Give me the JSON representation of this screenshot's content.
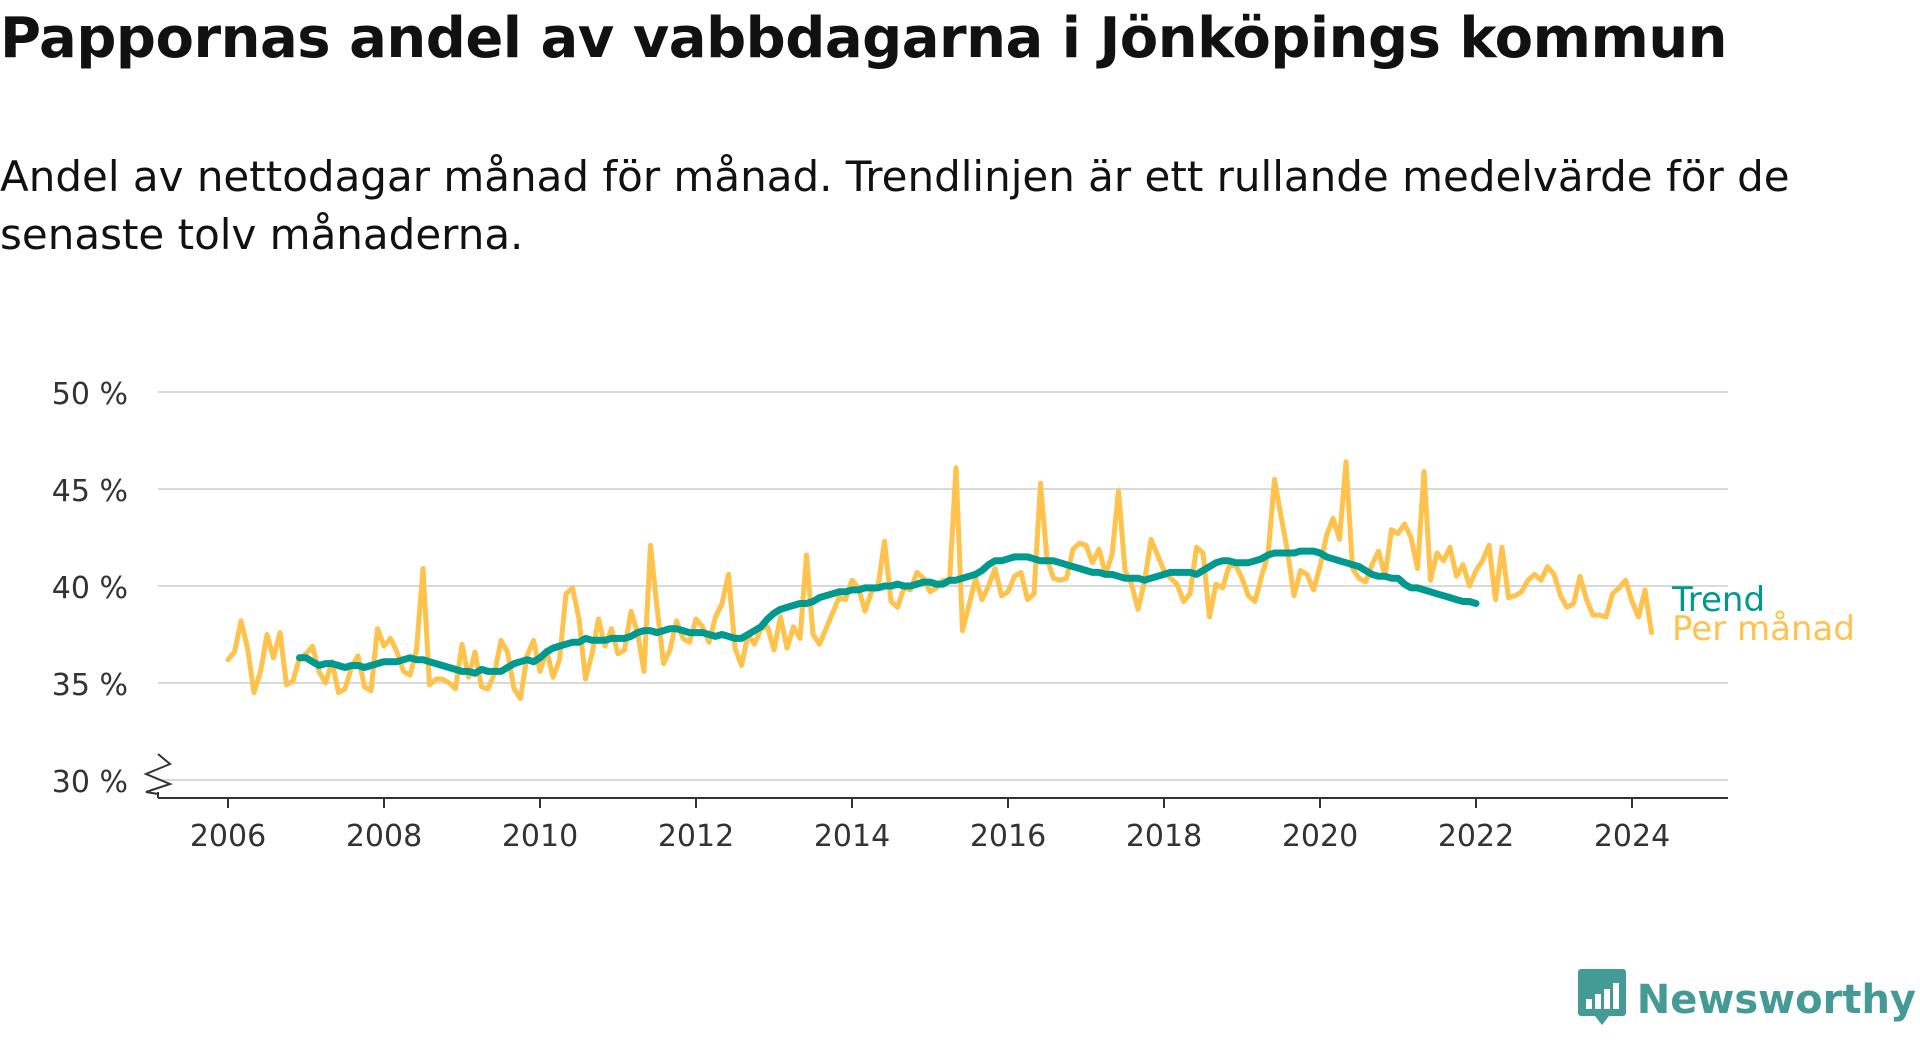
{
  "header": {
    "title": "Pappornas andel av vabbdagarna i Jönköpings kommun",
    "subtitle": "Andel av nettodagar månad för månad. Trendlinjen är ett rullande medelvärde för de senaste tolv månaderna."
  },
  "brand": {
    "name": "Newsworthy",
    "icon": "newsworthy-logo-icon",
    "color": "#449a94"
  },
  "chart_data": {
    "type": "line",
    "title": "Pappornas andel av vabbdagarna i Jönköpings kommun",
    "subtitle": "Andel av nettodagar månad för månad. Trendlinjen är ett rullande medelvärde för de senaste tolv månaderna.",
    "ylim": [
      30,
      50
    ],
    "yticks": [
      30,
      35,
      40,
      45,
      50
    ],
    "ytick_labels": [
      "30 %",
      "35 %",
      "40 %",
      "45 %",
      "50 %"
    ],
    "y_axis_break": true,
    "xlim": [
      "2006-01",
      "2024-05"
    ],
    "xticks": [
      "2006-01",
      "2008-01",
      "2010-01",
      "2012-01",
      "2014-01",
      "2016-01",
      "2018-01",
      "2020-01",
      "2022-01",
      "2024-01"
    ],
    "xtick_labels": [
      "2006",
      "2008",
      "2010",
      "2012",
      "2014",
      "2016",
      "2018",
      "2020",
      "2022",
      "2024"
    ],
    "grid": true,
    "series": [
      {
        "name": "Per månad",
        "color": "#ffc24c",
        "start": "2006-01",
        "values": [
          36.2,
          36.6,
          38.2,
          36.8,
          34.5,
          35.6,
          37.5,
          36.3,
          37.6,
          34.9,
          35.1,
          36.3,
          36.5,
          36.9,
          35.6,
          35.0,
          36.1,
          34.5,
          34.7,
          35.8,
          36.4,
          34.8,
          34.6,
          37.8,
          36.9,
          37.3,
          36.6,
          35.6,
          35.4,
          36.7,
          40.9,
          34.9,
          35.2,
          35.2,
          35.0,
          34.7,
          37.0,
          35.3,
          36.6,
          34.8,
          34.7,
          35.5,
          37.2,
          36.6,
          34.7,
          34.2,
          36.4,
          37.2,
          35.6,
          36.7,
          35.3,
          36.2,
          39.6,
          39.9,
          38.3,
          35.2,
          36.5,
          38.3,
          36.9,
          37.8,
          36.5,
          36.7,
          38.7,
          37.6,
          35.6,
          42.1,
          38.9,
          36.0,
          36.7,
          38.2,
          37.3,
          37.1,
          38.3,
          37.9,
          37.1,
          38.4,
          39.1,
          40.6,
          36.8,
          35.9,
          37.5,
          37.0,
          37.8,
          37.9,
          36.7,
          38.4,
          36.8,
          37.9,
          37.3,
          41.6,
          37.5,
          37.0,
          37.8,
          38.6,
          39.4,
          39.3,
          40.3,
          39.9,
          38.7,
          39.7,
          40.0,
          42.3,
          39.2,
          38.9,
          39.9,
          39.8,
          40.7,
          40.4,
          39.7,
          39.9,
          40.3,
          40.2,
          46.1,
          37.7,
          39.0,
          40.4,
          39.3,
          40.0,
          40.9,
          39.5,
          39.7,
          40.5,
          40.7,
          39.3,
          39.6,
          45.3,
          41.4,
          40.4,
          40.3,
          40.4,
          41.9,
          42.2,
          42.1,
          41.2,
          41.9,
          40.6,
          41.6,
          44.9,
          40.8,
          40.1,
          38.8,
          40.2,
          42.4,
          41.6,
          40.8,
          40.4,
          40.1,
          39.2,
          39.6,
          42.0,
          41.7,
          38.4,
          40.1,
          39.9,
          41.0,
          41.1,
          40.4,
          39.5,
          39.2,
          40.5,
          41.6,
          45.5,
          43.6,
          41.8,
          39.5,
          40.8,
          40.6,
          39.8,
          41.0,
          42.6,
          43.5,
          42.4,
          46.4,
          40.9,
          40.4,
          40.2,
          41.1,
          41.8,
          40.5,
          42.9,
          42.7,
          43.2,
          42.5,
          40.9,
          45.9,
          40.3,
          41.7,
          41.3,
          42.0,
          40.5,
          41.1,
          40.0,
          40.8,
          41.3,
          42.1,
          39.3,
          42.0,
          39.4,
          39.5,
          39.7,
          40.3,
          40.6,
          40.3,
          41.0,
          40.6,
          39.5,
          38.9,
          39.1,
          40.5,
          39.3,
          38.5,
          38.5,
          38.4,
          39.6,
          39.9,
          40.3,
          39.2,
          38.4,
          39.8,
          37.6
        ]
      },
      {
        "name": "Trend",
        "color": "#00998f",
        "start": "2006-12",
        "values": [
          36.3,
          36.3,
          36.1,
          35.9,
          36.0,
          36.0,
          35.9,
          35.8,
          35.9,
          35.9,
          35.8,
          35.9,
          36.0,
          36.1,
          36.1,
          36.1,
          36.2,
          36.3,
          36.2,
          36.2,
          36.1,
          36.0,
          35.9,
          35.8,
          35.7,
          35.6,
          35.6,
          35.5,
          35.7,
          35.6,
          35.6,
          35.6,
          35.8,
          36.0,
          36.1,
          36.2,
          36.1,
          36.3,
          36.6,
          36.8,
          36.9,
          37.0,
          37.1,
          37.1,
          37.3,
          37.2,
          37.2,
          37.2,
          37.3,
          37.3,
          37.3,
          37.4,
          37.6,
          37.7,
          37.7,
          37.6,
          37.7,
          37.8,
          37.8,
          37.7,
          37.6,
          37.6,
          37.6,
          37.5,
          37.4,
          37.5,
          37.4,
          37.3,
          37.3,
          37.5,
          37.7,
          37.9,
          38.3,
          38.6,
          38.8,
          38.9,
          39.0,
          39.1,
          39.1,
          39.2,
          39.4,
          39.5,
          39.6,
          39.7,
          39.7,
          39.8,
          39.8,
          39.9,
          39.9,
          39.9,
          40.0,
          40.0,
          40.1,
          40.0,
          40.0,
          40.1,
          40.2,
          40.2,
          40.1,
          40.1,
          40.3,
          40.3,
          40.4,
          40.5,
          40.6,
          40.8,
          41.1,
          41.3,
          41.3,
          41.4,
          41.5,
          41.5,
          41.5,
          41.4,
          41.3,
          41.3,
          41.3,
          41.2,
          41.1,
          41.0,
          40.9,
          40.8,
          40.7,
          40.7,
          40.6,
          40.6,
          40.5,
          40.4,
          40.4,
          40.4,
          40.3,
          40.4,
          40.5,
          40.6,
          40.7,
          40.7,
          40.7,
          40.7,
          40.6,
          40.8,
          41.0,
          41.2,
          41.3,
          41.3,
          41.2,
          41.2,
          41.2,
          41.3,
          41.4,
          41.6,
          41.7,
          41.7,
          41.7,
          41.7,
          41.8,
          41.8,
          41.8,
          41.7,
          41.5,
          41.4,
          41.3,
          41.2,
          41.1,
          41.0,
          40.8,
          40.6,
          40.5,
          40.5,
          40.4,
          40.4,
          40.1,
          39.9,
          39.9,
          39.8,
          39.7,
          39.6,
          39.5,
          39.4,
          39.3,
          39.2,
          39.2,
          39.1
        ]
      }
    ],
    "legend": "line-end labels, right",
    "legend_entries": [
      {
        "label": "Trend",
        "color": "#00998f"
      },
      {
        "label": "Per månad",
        "color": "#ffc24c"
      }
    ]
  }
}
